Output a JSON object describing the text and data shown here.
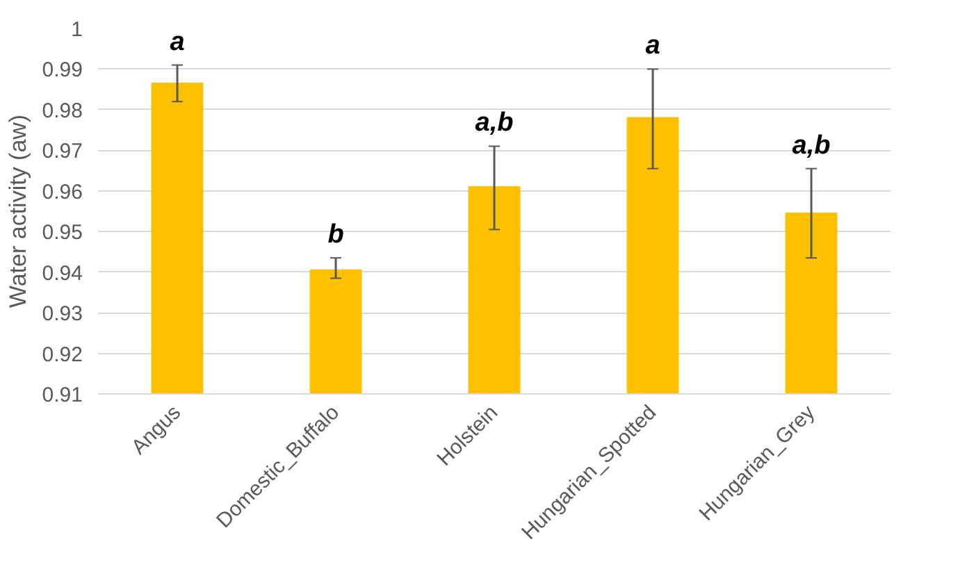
{
  "chart_data": {
    "type": "bar",
    "ylabel": "Water activity (aw)",
    "categories": [
      "Angus",
      "Domestic_Buffalo",
      "Holstein",
      "Hungarian_Spotted",
      "Hungarian_Grey"
    ],
    "values": [
      0.9865,
      0.9405,
      0.961,
      0.978,
      0.9545
    ],
    "errors": [
      [
        0.982,
        0.991
      ],
      [
        0.9385,
        0.9435
      ],
      [
        0.9505,
        0.971
      ],
      [
        0.9655,
        0.99
      ],
      [
        0.9435,
        0.9655
      ]
    ],
    "color": "#ffc000",
    "ylim": [
      0.91,
      1
    ],
    "yticks": [
      {
        "value": 0.91,
        "label": "0.91"
      },
      {
        "value": 0.92,
        "label": "0.92"
      },
      {
        "value": 0.93,
        "label": "0.93"
      },
      {
        "value": 0.94,
        "label": "0.94"
      },
      {
        "value": 0.95,
        "label": "0.95"
      },
      {
        "value": 0.96,
        "label": "0.96"
      },
      {
        "value": 0.97,
        "label": "0.97"
      },
      {
        "value": 0.98,
        "label": "0.98"
      },
      {
        "value": 0.99,
        "label": "0.99"
      },
      {
        "value": 1,
        "label": "1"
      }
    ],
    "grid": "y",
    "annotations": [
      {
        "text": "a",
        "x": "Angus",
        "y": 0.991
      },
      {
        "text": "b",
        "x": "Domestic_Buffalo",
        "y": 0.9435
      },
      {
        "text": "a,b",
        "x": "Holstein",
        "y": 0.971
      },
      {
        "text": "a",
        "x": "Hungarian_Spotted",
        "y": 0.99
      },
      {
        "text": "a,b",
        "x": "Hungarian_Grey",
        "y": 0.9655
      }
    ]
  }
}
